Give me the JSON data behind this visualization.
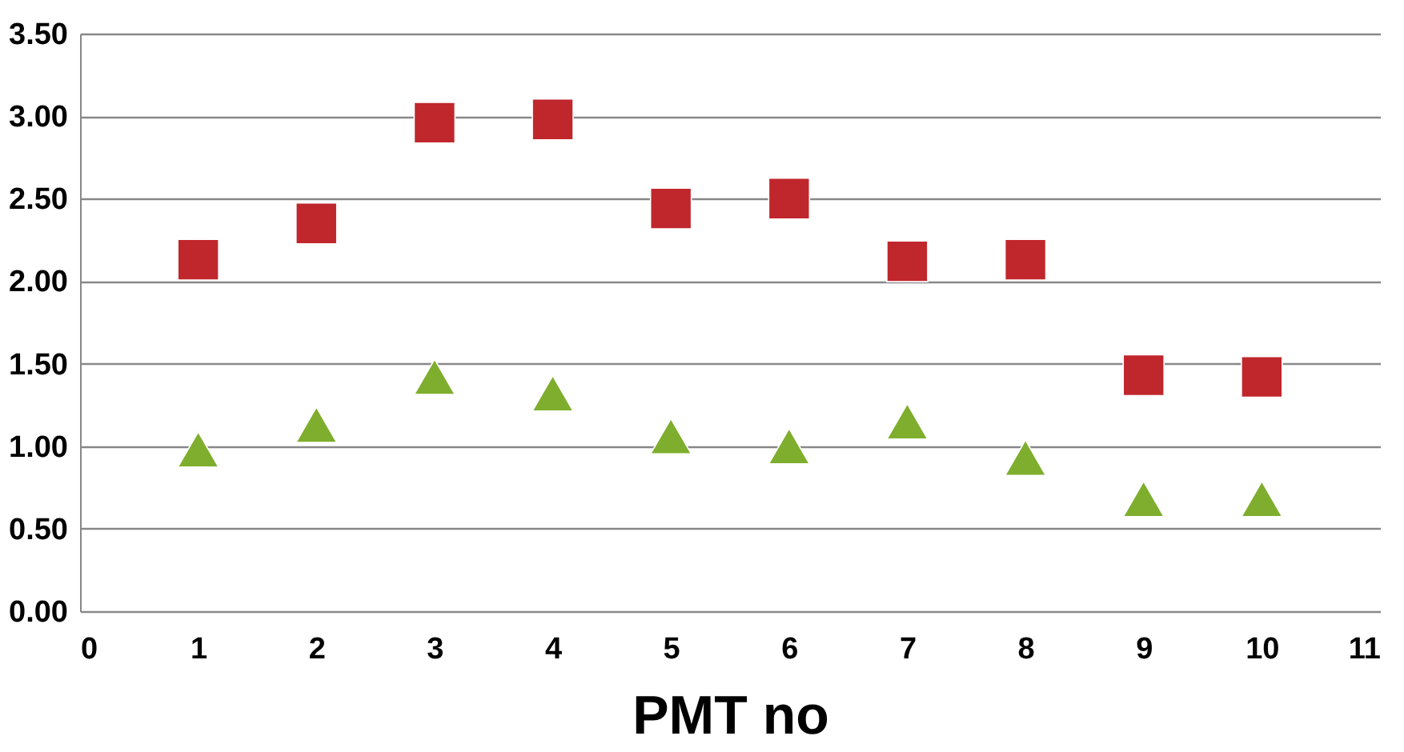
{
  "chart_data": {
    "type": "scatter",
    "xlabel": "PMT no",
    "x": [
      1,
      2,
      3,
      4,
      5,
      6,
      7,
      8,
      9,
      10
    ],
    "series": [
      {
        "color": "#c0272d",
        "marker": "square",
        "values": [
          2.13,
          2.35,
          2.96,
          2.98,
          2.44,
          2.5,
          2.12,
          2.13,
          1.43,
          1.42
        ]
      },
      {
        "color": "#7fae2e",
        "marker": "triangle",
        "values": [
          0.98,
          1.13,
          1.42,
          1.32,
          1.06,
          1.0,
          1.15,
          0.93,
          0.68,
          0.68
        ]
      }
    ],
    "xlim": [
      0,
      11
    ],
    "xticks": [
      0,
      1,
      2,
      3,
      4,
      5,
      6,
      7,
      8,
      9,
      10,
      11
    ],
    "ylim": [
      0,
      3.5
    ],
    "yticks": [
      {
        "value": 0,
        "label": "0.00"
      },
      {
        "value": 0.5,
        "label": "0.50"
      },
      {
        "value": 1,
        "label": "1.00"
      },
      {
        "value": 1.5,
        "label": "1.50"
      },
      {
        "value": 2,
        "label": "2.00"
      },
      {
        "value": 2.5,
        "label": "2.50"
      },
      {
        "value": 3,
        "label": "3.00"
      },
      {
        "value": 3.5,
        "label": "3.50"
      }
    ],
    "grid": "y"
  }
}
